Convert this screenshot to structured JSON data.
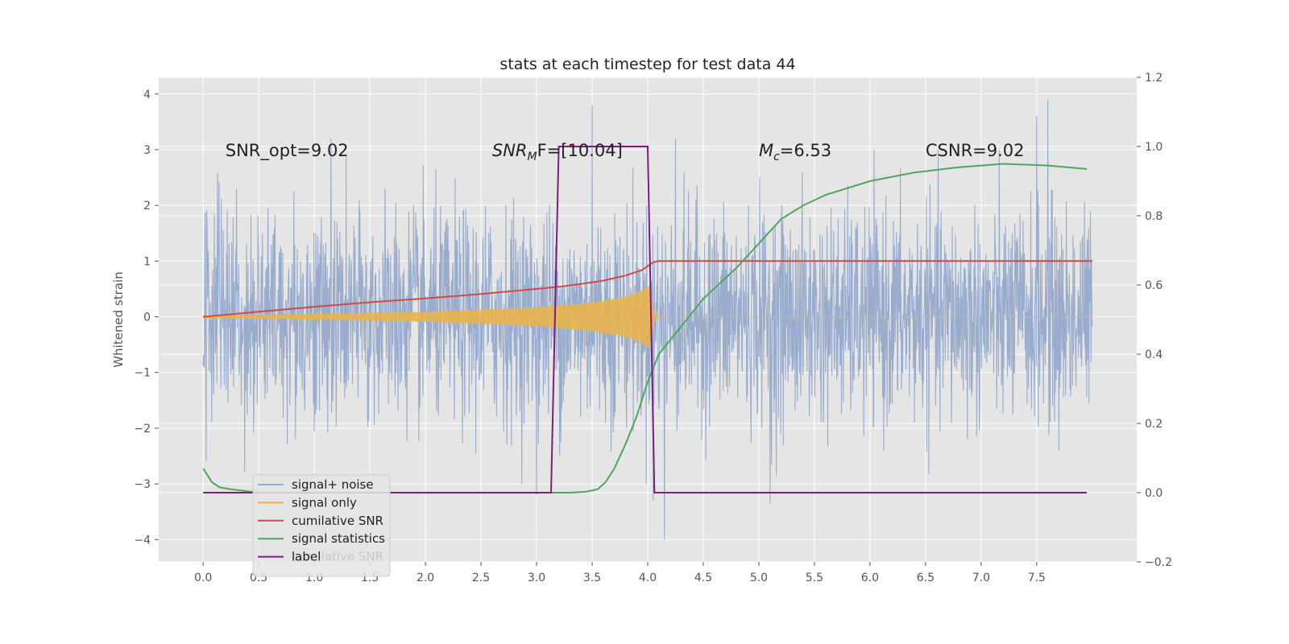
{
  "chart_data": {
    "type": "line",
    "title": "stats at each timestep for test data 44",
    "ylabel": "Whitened strain",
    "ylabel_right": "",
    "xlim": [
      -0.4,
      8.4
    ],
    "ylim": [
      -4.4,
      4.3
    ],
    "ylim_right": [
      -0.2,
      1.2
    ],
    "x_ticks": [
      0.0,
      0.5,
      1.0,
      1.5,
      2.0,
      2.5,
      3.0,
      3.5,
      4.0,
      4.5,
      5.0,
      5.5,
      6.0,
      6.5,
      7.0,
      7.5
    ],
    "x_tick_labels": [
      "0.0",
      "0.5",
      "1.0",
      "1.5",
      "2.0",
      "2.5",
      "3.0",
      "3.5",
      "4.0",
      "4.5",
      "5.0",
      "5.5",
      "6.0",
      "6.5",
      "7.0",
      "7.5"
    ],
    "y_ticks": [
      -4,
      -3,
      -2,
      -1,
      0,
      1,
      2,
      3,
      4
    ],
    "y_tick_labels": [
      "−4",
      "−3",
      "−2",
      "−1",
      "0",
      "1",
      "2",
      "3",
      "4"
    ],
    "y_right_ticks": [
      -0.2,
      0.0,
      0.2,
      0.4,
      0.6,
      0.8,
      1.0,
      1.2
    ],
    "y_right_tick_labels": [
      "−0.2",
      "0.0",
      "0.2",
      "0.4",
      "0.6",
      "0.8",
      "1.0",
      "1.2"
    ],
    "grid": true,
    "legend_position": "lower-left",
    "annotations": [
      {
        "label": "SNR_opt=9.02",
        "x": 0.2,
        "y": 3.0
      },
      {
        "label": "F=[10.04]",
        "math_prefix": {
          "base": "SNR",
          "sub": "M"
        },
        "x": 2.6,
        "y": 3.0
      },
      {
        "label": "=6.53",
        "math_prefix": {
          "base": "M",
          "sub": "c"
        },
        "x": 5.0,
        "y": 3.0
      },
      {
        "label": "CSNR=9.02",
        "x": 6.5,
        "y": 3.0
      }
    ],
    "ghost_label": "cumilative SNR",
    "series": [
      {
        "name": "signal+ noise",
        "axis": "left",
        "color": "#95a9cc",
        "kind": "noise",
        "x_range": [
          0.0,
          8.0
        ],
        "std": 0.95,
        "peaks": [
          [
            0.1,
            1.85
          ],
          [
            0.3,
            2.3
          ],
          [
            1.15,
            3.2
          ],
          [
            3.5,
            3.8
          ],
          [
            4.25,
            3.2
          ],
          [
            7.5,
            3.6
          ],
          [
            7.6,
            3.9
          ],
          [
            3.0,
            -3.2
          ],
          [
            4.05,
            -3.3
          ],
          [
            4.15,
            -4.0
          ],
          [
            5.1,
            -3.35
          ],
          [
            7.7,
            -2.4
          ]
        ]
      },
      {
        "name": "signal only",
        "axis": "left",
        "color": "#e8b44b",
        "kind": "chirp",
        "envelope": [
          [
            0.0,
            0.02
          ],
          [
            1.0,
            0.05
          ],
          [
            2.0,
            0.09
          ],
          [
            3.0,
            0.17
          ],
          [
            3.5,
            0.26
          ],
          [
            3.8,
            0.36
          ],
          [
            3.95,
            0.48
          ],
          [
            4.02,
            0.57
          ],
          [
            4.06,
            0.08
          ],
          [
            4.1,
            0.0
          ]
        ],
        "x_range": [
          0.0,
          8.0
        ]
      },
      {
        "name": "cumilative SNR",
        "axis": "left",
        "color": "#d14a44",
        "x": [
          0.0,
          0.5,
          1.0,
          1.5,
          2.0,
          2.5,
          3.0,
          3.2,
          3.4,
          3.6,
          3.8,
          3.95,
          4.05,
          4.1,
          5.0,
          6.0,
          7.0,
          8.0
        ],
        "y": [
          0.0,
          0.09,
          0.18,
          0.26,
          0.33,
          0.41,
          0.5,
          0.54,
          0.59,
          0.65,
          0.74,
          0.84,
          0.98,
          1.0,
          1.0,
          1.0,
          1.0,
          1.0
        ]
      },
      {
        "name": "signal statistics",
        "axis": "right",
        "color": "#4fa65e",
        "x": [
          0.0,
          0.08,
          0.15,
          0.25,
          0.5,
          1.0,
          2.0,
          3.0,
          3.3,
          3.45,
          3.55,
          3.62,
          3.7,
          3.8,
          3.9,
          4.0,
          4.1,
          4.2,
          4.3,
          4.5,
          4.8,
          5.0,
          5.2,
          5.4,
          5.6,
          6.0,
          6.4,
          6.8,
          7.2,
          7.6,
          7.95
        ],
        "y": [
          0.07,
          0.03,
          0.015,
          0.01,
          0.0,
          0.0,
          0.0,
          0.0,
          0.0,
          0.003,
          0.01,
          0.03,
          0.07,
          0.14,
          0.22,
          0.32,
          0.4,
          0.44,
          0.48,
          0.56,
          0.65,
          0.72,
          0.79,
          0.83,
          0.86,
          0.9,
          0.925,
          0.94,
          0.95,
          0.945,
          0.935
        ]
      },
      {
        "name": "label",
        "axis": "right",
        "color": "#7a1f7a",
        "x": [
          0.0,
          3.13,
          3.2,
          4.0,
          4.06,
          7.95
        ],
        "y": [
          0.0,
          0.0,
          1.0,
          1.0,
          0.0,
          0.0
        ]
      }
    ]
  }
}
